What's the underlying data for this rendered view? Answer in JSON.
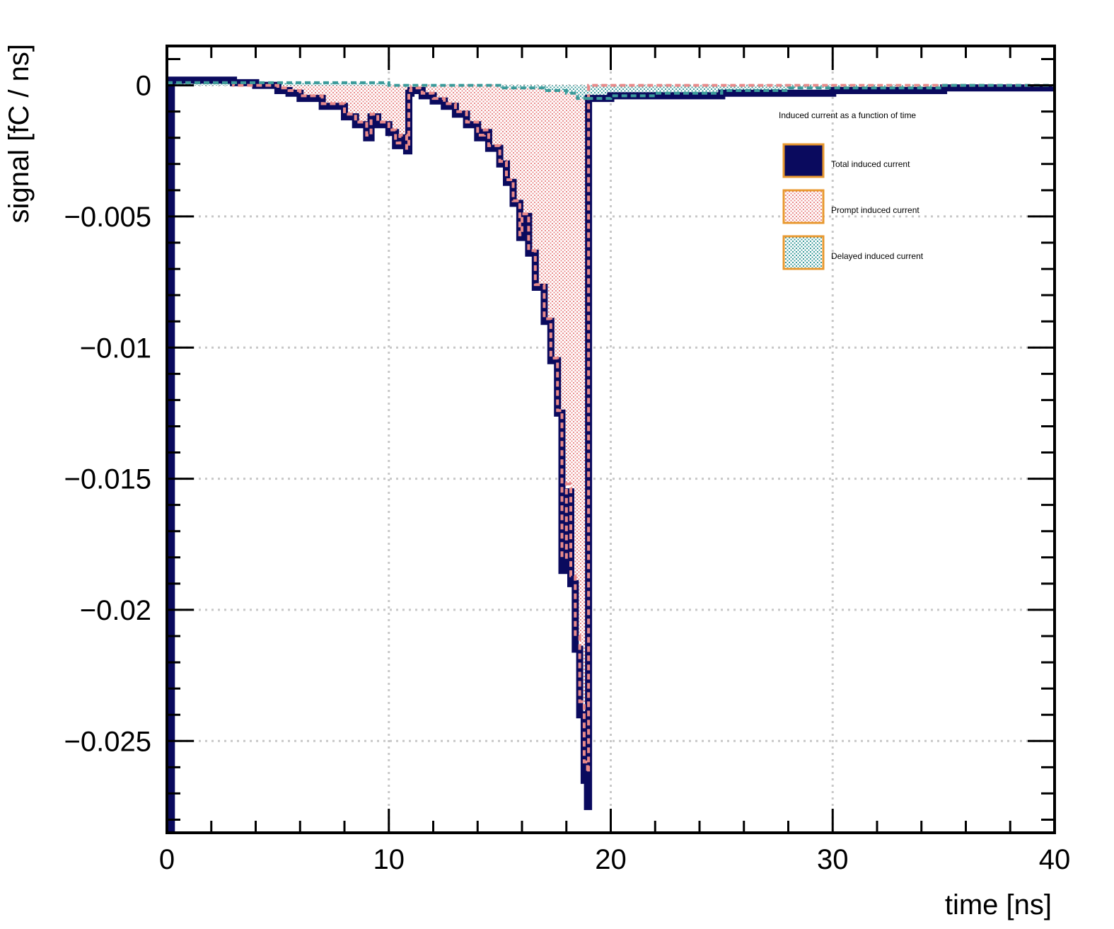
{
  "chart_data": {
    "type": "area",
    "xlabel": "time [ns]",
    "ylabel": "signal [fC / ns]",
    "xlim": [
      0,
      40
    ],
    "ylim": [
      -0.0285,
      0.0015
    ],
    "grid": true,
    "x_ticks": [
      {
        "value": 0,
        "label": "0"
      },
      {
        "value": 10,
        "label": "10"
      },
      {
        "value": 20,
        "label": "20"
      },
      {
        "value": 30,
        "label": "30"
      },
      {
        "value": 40,
        "label": "40"
      }
    ],
    "y_ticks": [
      {
        "value": 0,
        "label": "0"
      },
      {
        "value": -0.005,
        "label": "−0.005"
      },
      {
        "value": -0.01,
        "label": "−0.01"
      },
      {
        "value": -0.015,
        "label": "−0.015"
      },
      {
        "value": -0.02,
        "label": "−0.02"
      },
      {
        "value": -0.025,
        "label": "−0.025"
      }
    ],
    "legend": {
      "placement": "top-right",
      "title": "Induced current as a function of time",
      "entries": [
        {
          "label": "Total induced current",
          "series": "total",
          "fill": "#0a0a5e",
          "pattern": "solid"
        },
        {
          "label": "Prompt induced current",
          "series": "prompt",
          "fill": "#e88a8a",
          "pattern": "dots"
        },
        {
          "label": "Delayed induced current",
          "series": "delayed",
          "fill": "#3a9a9a",
          "pattern": "dots"
        }
      ]
    },
    "series": [
      {
        "name": "Total induced current",
        "key": "total",
        "color": "#0a0a5e",
        "x": [
          0,
          0.2,
          0.2,
          1,
          2,
          3,
          4,
          5,
          5.5,
          6,
          7,
          8,
          8.5,
          9,
          9.2,
          9.5,
          10,
          10.3,
          10.5,
          10.8,
          10.9,
          11,
          11.5,
          12,
          12.5,
          13,
          13.5,
          14,
          14.3,
          14.5,
          15,
          15.3,
          15.6,
          15.9,
          16.0,
          16.3,
          16.6,
          17.0,
          17.3,
          17.6,
          17.8,
          18.0,
          18.2,
          18.4,
          18.6,
          18.8,
          18.95,
          19.0,
          19.0,
          20,
          25,
          30,
          35,
          40
        ],
        "y": [
          -0.0285,
          -0.0285,
          0.0002,
          0.0002,
          0.0002,
          0.0001,
          0.0,
          -0.0002,
          -0.0003,
          -0.0005,
          -0.0008,
          -0.0012,
          -0.0015,
          -0.002,
          -0.0012,
          -0.0015,
          -0.0018,
          -0.0023,
          -0.002,
          -0.0025,
          -0.0003,
          -0.0002,
          -0.0004,
          -0.0006,
          -0.0008,
          -0.0011,
          -0.0015,
          -0.002,
          -0.0018,
          -0.0024,
          -0.003,
          -0.0037,
          -0.0045,
          -0.0058,
          -0.005,
          -0.0064,
          -0.0077,
          -0.009,
          -0.0105,
          -0.0125,
          -0.0185,
          -0.0155,
          -0.019,
          -0.0215,
          -0.024,
          -0.0265,
          -0.0275,
          -0.0275,
          -0.0005,
          -0.0004,
          -0.0003,
          -0.0002,
          -0.0001,
          0.0
        ]
      },
      {
        "name": "Prompt induced current",
        "key": "prompt",
        "color": "#e88a8a",
        "x": [
          0,
          1,
          2,
          3,
          4,
          5,
          5.5,
          6,
          7,
          8,
          8.5,
          9,
          9.2,
          9.5,
          10,
          10.3,
          10.5,
          10.8,
          10.9,
          11,
          11.5,
          12,
          12.5,
          13,
          13.5,
          14,
          14.3,
          14.5,
          15,
          15.3,
          15.6,
          15.9,
          16.0,
          16.3,
          16.6,
          17.0,
          17.3,
          17.6,
          17.8,
          18.0,
          18.2,
          18.4,
          18.6,
          18.8,
          18.95,
          19.0,
          19.0,
          20,
          25,
          30,
          35,
          40
        ],
        "y": [
          0.0001,
          0.0001,
          0.0001,
          0.0,
          0.0,
          -0.0001,
          -0.0002,
          -0.0004,
          -0.0007,
          -0.0011,
          -0.0014,
          -0.0019,
          -0.0011,
          -0.0014,
          -0.0017,
          -0.0022,
          -0.0019,
          -0.0024,
          -0.0002,
          -0.0001,
          -0.0003,
          -0.0005,
          -0.0007,
          -0.001,
          -0.0014,
          -0.0019,
          -0.0017,
          -0.0023,
          -0.0029,
          -0.0036,
          -0.0044,
          -0.0057,
          -0.0049,
          -0.0063,
          -0.0076,
          -0.0089,
          -0.0104,
          -0.0124,
          -0.018,
          -0.0152,
          -0.0187,
          -0.021,
          -0.0235,
          -0.0258,
          -0.0262,
          -0.0262,
          0.0,
          0.0,
          0.0,
          0.0,
          0.0,
          0.0
        ]
      },
      {
        "name": "Delayed induced current",
        "key": "delayed",
        "color": "#3a9a9a",
        "x": [
          0,
          5,
          10,
          15,
          17,
          18,
          18.5,
          19.0,
          19.0,
          20,
          22,
          25,
          28,
          30,
          35,
          40
        ],
        "y": [
          0.0001,
          0.0001,
          0.0,
          -0.0001,
          -0.0002,
          -0.0003,
          -0.0005,
          -0.0006,
          -0.0005,
          -0.0004,
          -0.0003,
          -0.0002,
          -0.0001,
          -0.0001,
          0.0,
          0.0
        ]
      }
    ]
  }
}
